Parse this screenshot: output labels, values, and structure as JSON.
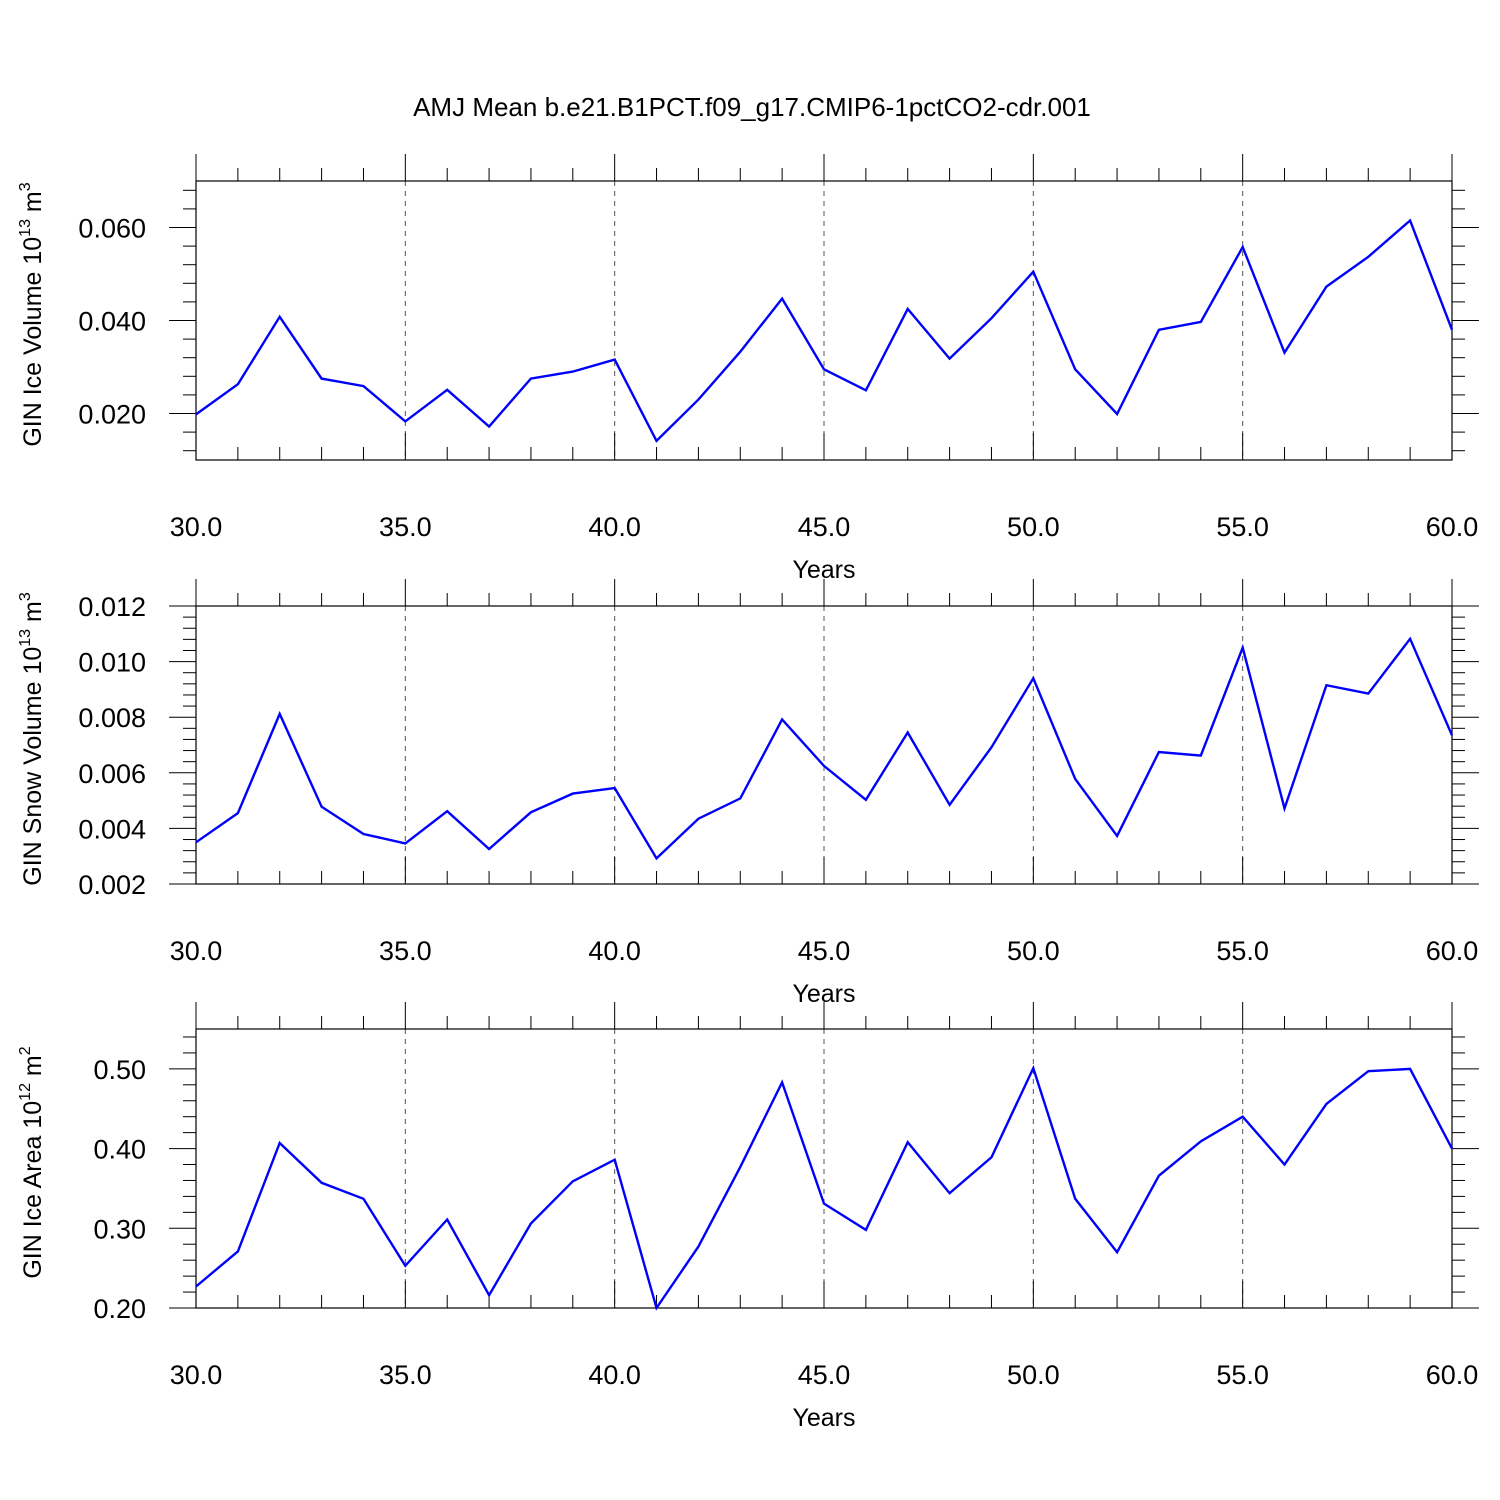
{
  "title": "AMJ Mean b.e21.B1PCT.f09_g17.CMIP6-1pctCO2-cdr.001",
  "chart_data": [
    {
      "type": "line",
      "title": "AMJ Mean b.e21.B1PCT.f09_g17.CMIP6-1pctCO2-cdr.001",
      "xlabel": "Years",
      "ylabel": {
        "main": "GIN Ice Volume 10",
        "sup1": "13",
        "mid": " m",
        "sup2": "3"
      },
      "xlim": [
        30,
        60
      ],
      "ylim": [
        0.01,
        0.07
      ],
      "xticks": [
        30,
        35,
        40,
        45,
        50,
        55,
        60
      ],
      "xtick_labels": [
        "30.0",
        "35.0",
        "40.0",
        "45.0",
        "50.0",
        "55.0",
        "60.0"
      ],
      "yticks": [
        0.02,
        0.04,
        0.06
      ],
      "ytick_labels": [
        "0.020",
        "0.040",
        "0.060"
      ],
      "grid": "vertical dashed at major x ticks",
      "line_color": "#0000ff",
      "x": [
        30,
        31,
        32,
        33,
        34,
        35,
        36,
        37,
        38,
        39,
        40,
        41,
        42,
        43,
        44,
        45,
        46,
        47,
        48,
        49,
        50,
        51,
        52,
        53,
        54,
        55,
        56,
        57,
        58,
        59,
        60
      ],
      "values": [
        0.0198,
        0.0263,
        0.0408,
        0.0275,
        0.0259,
        0.0183,
        0.0251,
        0.0172,
        0.0275,
        0.029,
        0.0316,
        0.0141,
        0.023,
        0.0333,
        0.0447,
        0.0295,
        0.025,
        0.0425,
        0.0318,
        0.0405,
        0.0505,
        0.0295,
        0.0199,
        0.038,
        0.0397,
        0.0558,
        0.0331,
        0.0473,
        0.0537,
        0.0615,
        0.038
      ]
    },
    {
      "type": "line",
      "xlabel": "Years",
      "ylabel": {
        "main": "GIN Snow Volume 10",
        "sup1": "13",
        "mid": " m",
        "sup2": "3"
      },
      "xlim": [
        30,
        60
      ],
      "ylim": [
        0.002,
        0.012
      ],
      "xticks": [
        30,
        35,
        40,
        45,
        50,
        55,
        60
      ],
      "xtick_labels": [
        "30.0",
        "35.0",
        "40.0",
        "45.0",
        "50.0",
        "55.0",
        "60.0"
      ],
      "yticks": [
        0.002,
        0.004,
        0.006,
        0.008,
        0.01,
        0.012
      ],
      "ytick_labels": [
        "0.002",
        "0.004",
        "0.006",
        "0.008",
        "0.010",
        "0.012"
      ],
      "grid": "vertical dashed at major x ticks",
      "line_color": "#0000ff",
      "x": [
        30,
        31,
        32,
        33,
        34,
        35,
        36,
        37,
        38,
        39,
        40,
        41,
        42,
        43,
        44,
        45,
        46,
        47,
        48,
        49,
        50,
        51,
        52,
        53,
        54,
        55,
        56,
        57,
        58,
        59,
        60
      ],
      "values": [
        0.0035,
        0.00455,
        0.00812,
        0.00478,
        0.0038,
        0.00346,
        0.00462,
        0.00326,
        0.00458,
        0.00525,
        0.00545,
        0.00292,
        0.00435,
        0.00508,
        0.00792,
        0.00625,
        0.00503,
        0.00745,
        0.00485,
        0.00692,
        0.0094,
        0.00578,
        0.00373,
        0.00675,
        0.00662,
        0.0105,
        0.00472,
        0.00915,
        0.00885,
        0.01082,
        0.00735
      ]
    },
    {
      "type": "line",
      "xlabel": "Years",
      "ylabel": {
        "main": "GIN Ice Area 10",
        "sup1": "12",
        "mid": " m",
        "sup2": "2"
      },
      "xlim": [
        30,
        60
      ],
      "ylim": [
        0.2,
        0.55
      ],
      "xticks": [
        30,
        35,
        40,
        45,
        50,
        55,
        60
      ],
      "xtick_labels": [
        "30.0",
        "35.0",
        "40.0",
        "45.0",
        "50.0",
        "55.0",
        "60.0"
      ],
      "yticks": [
        0.2,
        0.3,
        0.4,
        0.5
      ],
      "ytick_labels": [
        "0.20",
        "0.30",
        "0.40",
        "0.50"
      ],
      "grid": "vertical dashed at major x ticks",
      "line_color": "#0000ff",
      "x": [
        30,
        31,
        32,
        33,
        34,
        35,
        36,
        37,
        38,
        39,
        40,
        41,
        42,
        43,
        44,
        45,
        46,
        47,
        48,
        49,
        50,
        51,
        52,
        53,
        54,
        55,
        56,
        57,
        58,
        59,
        60
      ],
      "values": [
        0.227,
        0.271,
        0.407,
        0.357,
        0.337,
        0.253,
        0.311,
        0.216,
        0.306,
        0.359,
        0.386,
        0.2,
        0.277,
        0.377,
        0.483,
        0.331,
        0.298,
        0.408,
        0.344,
        0.389,
        0.501,
        0.337,
        0.27,
        0.366,
        0.409,
        0.44,
        0.38,
        0.456,
        0.497,
        0.5,
        0.4
      ]
    }
  ]
}
